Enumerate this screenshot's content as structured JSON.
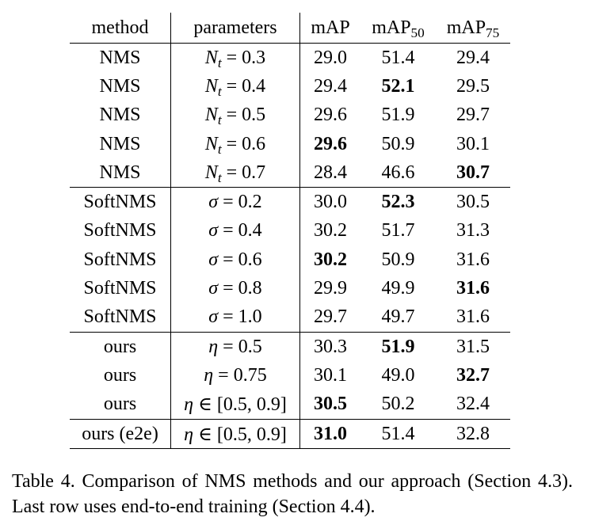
{
  "table": {
    "headers": {
      "method": "method",
      "parameters": "parameters",
      "map": "mAP",
      "map50_base": "mAP",
      "map50_sub": "50",
      "map75_base": "mAP",
      "map75_sub": "75"
    },
    "rows": [
      {
        "method": "NMS",
        "param_var": "N",
        "param_sub": "t",
        "param_rest": " = 0.3",
        "map": "29.0",
        "map50": "51.4",
        "map75": "29.4",
        "bold": []
      },
      {
        "method": "NMS",
        "param_var": "N",
        "param_sub": "t",
        "param_rest": " = 0.4",
        "map": "29.4",
        "map50": "52.1",
        "map75": "29.5",
        "bold": [
          "map50"
        ]
      },
      {
        "method": "NMS",
        "param_var": "N",
        "param_sub": "t",
        "param_rest": " = 0.5",
        "map": "29.6",
        "map50": "51.9",
        "map75": "29.7",
        "bold": []
      },
      {
        "method": "NMS",
        "param_var": "N",
        "param_sub": "t",
        "param_rest": " = 0.6",
        "map": "29.6",
        "map50": "50.9",
        "map75": "30.1",
        "bold": [
          "map"
        ]
      },
      {
        "method": "NMS",
        "param_var": "N",
        "param_sub": "t",
        "param_rest": " = 0.7",
        "map": "28.4",
        "map50": "46.6",
        "map75": "30.7",
        "bold": [
          "map75"
        ],
        "group_end": true
      },
      {
        "method": "SoftNMS",
        "param_var": "σ",
        "param_sub": "",
        "param_rest": " = 0.2",
        "map": "30.0",
        "map50": "52.3",
        "map75": "30.5",
        "bold": [
          "map50"
        ]
      },
      {
        "method": "SoftNMS",
        "param_var": "σ",
        "param_sub": "",
        "param_rest": " = 0.4",
        "map": "30.2",
        "map50": "51.7",
        "map75": "31.3",
        "bold": []
      },
      {
        "method": "SoftNMS",
        "param_var": "σ",
        "param_sub": "",
        "param_rest": " = 0.6",
        "map": "30.2",
        "map50": "50.9",
        "map75": "31.6",
        "bold": [
          "map"
        ]
      },
      {
        "method": "SoftNMS",
        "param_var": "σ",
        "param_sub": "",
        "param_rest": " = 0.8",
        "map": "29.9",
        "map50": "49.9",
        "map75": "31.6",
        "bold": [
          "map75"
        ]
      },
      {
        "method": "SoftNMS",
        "param_var": "σ",
        "param_sub": "",
        "param_rest": " = 1.0",
        "map": "29.7",
        "map50": "49.7",
        "map75": "31.6",
        "bold": [],
        "group_end": true
      },
      {
        "method": "ours",
        "param_var": "η",
        "param_sub": "",
        "param_rest": " = 0.5",
        "map": "30.3",
        "map50": "51.9",
        "map75": "31.5",
        "bold": [
          "map50"
        ]
      },
      {
        "method": "ours",
        "param_var": "η",
        "param_sub": "",
        "param_rest": " = 0.75",
        "map": "30.1",
        "map50": "49.0",
        "map75": "32.7",
        "bold": [
          "map75"
        ]
      },
      {
        "method": "ours",
        "param_var": "η",
        "param_sub": "",
        "param_rest": " ∈ [0.5, 0.9]",
        "map": "30.5",
        "map50": "50.2",
        "map75": "32.4",
        "bold": [
          "map"
        ],
        "group_end": true
      },
      {
        "method": "ours (e2e)",
        "param_var": "η",
        "param_sub": "",
        "param_rest": " ∈ [0.5, 0.9]",
        "map": "31.0",
        "map50": "51.4",
        "map75": "32.8",
        "bold": [
          "map"
        ],
        "last": true
      }
    ]
  },
  "caption": "Table 4. Comparison of NMS methods and our approach (Section 4.3). Last row uses end-to-end training (Section 4.4)."
}
